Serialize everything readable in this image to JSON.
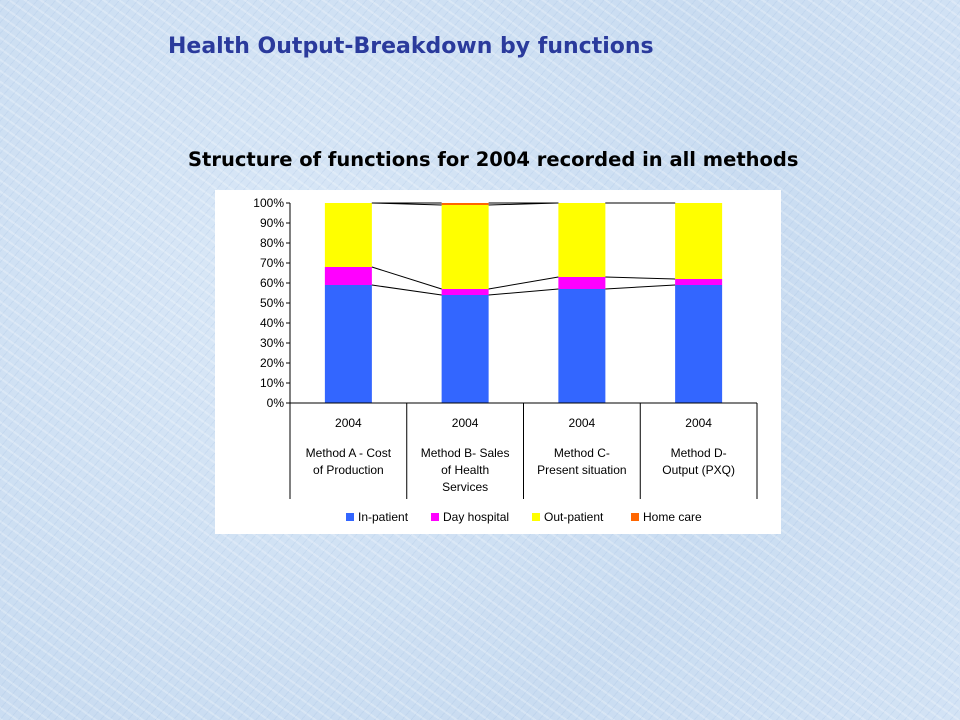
{
  "slide": {
    "title": "Health Output-Breakdown by functions"
  },
  "colors": {
    "in_patient": "#3366ff",
    "day_hospital": "#ff00ff",
    "out_patient": "#ffff00",
    "home_care": "#ff6600",
    "plot_bg": "#ffffff"
  },
  "chart_data": {
    "type": "bar",
    "stacked": "percent",
    "title": "Structure of functions for 2004 recorded in all methods",
    "categories": [
      {
        "year": "2004",
        "lines": [
          "Method A - Cost",
          "of Production"
        ]
      },
      {
        "year": "2004",
        "lines": [
          "Method B- Sales",
          "of Health",
          "Services"
        ]
      },
      {
        "year": "2004",
        "lines": [
          "Method C-",
          "Present situation"
        ]
      },
      {
        "year": "2004",
        "lines": [
          "Method D-",
          "Output (PXQ)"
        ]
      }
    ],
    "series": [
      {
        "name": "In-patient",
        "color": "#3366ff",
        "values": [
          59,
          54,
          57,
          59
        ]
      },
      {
        "name": "Day hospital",
        "color": "#ff00ff",
        "values": [
          9,
          3,
          6,
          3
        ]
      },
      {
        "name": "Out-patient",
        "color": "#ffff00",
        "values": [
          32,
          42,
          37,
          38
        ]
      },
      {
        "name": "Home care",
        "color": "#ff6600",
        "values": [
          0,
          1,
          0,
          0
        ]
      }
    ],
    "ylim": [
      0,
      100
    ],
    "yticks": [
      "0%",
      "10%",
      "20%",
      "30%",
      "40%",
      "50%",
      "60%",
      "70%",
      "80%",
      "90%",
      "100%"
    ],
    "series_lines": true,
    "grid": false,
    "legend": "bottom"
  }
}
